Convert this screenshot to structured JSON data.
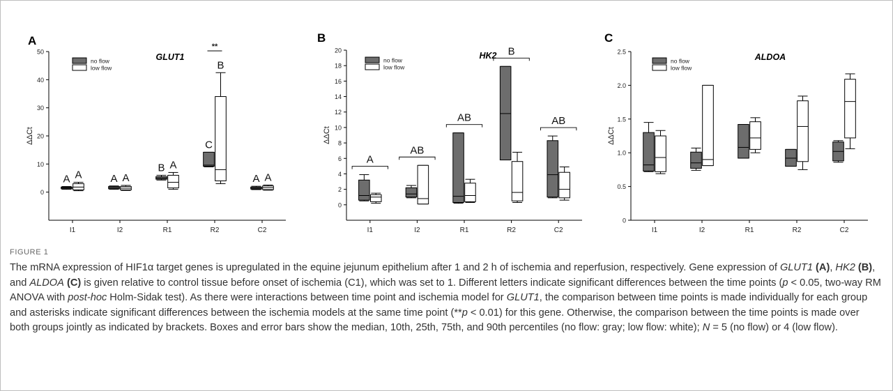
{
  "figure_label": "FIGURE 1",
  "caption_parts": [
    {
      "t": "The mRNA expression of HIF1α target genes is upregulated in the equine jejunum epithelium after 1 and 2 h of ischemia and reperfusion, respectively. Gene expression of "
    },
    {
      "t": "GLUT1",
      "s": "i"
    },
    {
      "t": " "
    },
    {
      "t": "(A)",
      "s": "b"
    },
    {
      "t": ", "
    },
    {
      "t": "HK2",
      "s": "i"
    },
    {
      "t": " "
    },
    {
      "t": "(B)",
      "s": "b"
    },
    {
      "t": ", and "
    },
    {
      "t": "ALDOA",
      "s": "i"
    },
    {
      "t": " "
    },
    {
      "t": "(C)",
      "s": "b"
    },
    {
      "t": " is given relative to control tissue before onset of ischemia (C1), which was set to 1. Different letters indicate significant differences between the time points ("
    },
    {
      "t": "p",
      "s": "i"
    },
    {
      "t": " < 0.05, two-way RM ANOVA with "
    },
    {
      "t": "post-hoc",
      "s": "i"
    },
    {
      "t": " Holm-Sidak test). As there were interactions between time point and ischemia model for "
    },
    {
      "t": "GLUT1",
      "s": "i"
    },
    {
      "t": ", the comparison between time points is made individually for each group and asterisks indicate significant differences between the ischemia models at the same time point (**"
    },
    {
      "t": "p",
      "s": "i"
    },
    {
      "t": " < 0.01) for this gene. Otherwise, the comparison between the time points is made over both groups jointly as indicated by brackets. Boxes and error bars show the median, 10th, 25th, 75th, and 90th percentiles (no flow: gray; low flow: white); "
    },
    {
      "t": "N",
      "s": "i"
    },
    {
      "t": " = 5 (no flow) or 4 (low flow)."
    }
  ],
  "colors": {
    "no_flow": "#6d6d6d",
    "low_flow": "#ffffff",
    "stroke": "#000000"
  },
  "chart_data": [
    {
      "type": "box",
      "panel": "A",
      "title": "GLUT1",
      "ylabel": "ΔΔCt",
      "ylim": [
        -10,
        50
      ],
      "yticks": [
        0,
        10,
        20,
        30,
        40,
        50
      ],
      "categories": [
        "I1",
        "I2",
        "R1",
        "R2",
        "C2"
      ],
      "legend": [
        "no flow",
        "low flow"
      ],
      "legend_position": "top-left",
      "series": [
        {
          "name": "no flow",
          "boxes": [
            {
              "p10": 1.0,
              "q1": 1.2,
              "median": 1.5,
              "q3": 1.8,
              "p90": 2.0
            },
            {
              "p10": 1.0,
              "q1": 1.2,
              "median": 1.6,
              "q3": 2.0,
              "p90": 2.2
            },
            {
              "p10": 4.3,
              "q1": 4.6,
              "median": 5.0,
              "q3": 5.5,
              "p90": 6.0
            },
            {
              "p10": 9.0,
              "q1": 9.2,
              "median": 9.6,
              "q3": 14.2,
              "p90": 14.2
            },
            {
              "p10": 0.9,
              "q1": 1.1,
              "median": 1.4,
              "q3": 1.8,
              "p90": 2.1
            }
          ]
        },
        {
          "name": "low flow",
          "boxes": [
            {
              "p10": 0.5,
              "q1": 0.8,
              "median": 1.8,
              "q3": 3.0,
              "p90": 3.5
            },
            {
              "p10": 0.6,
              "q1": 0.8,
              "median": 1.4,
              "q3": 2.0,
              "p90": 2.4
            },
            {
              "p10": 1.0,
              "q1": 1.5,
              "median": 3.5,
              "q3": 6.0,
              "p90": 7.0
            },
            {
              "p10": 3.0,
              "q1": 4.0,
              "median": 8.0,
              "q3": 34.0,
              "p90": 42.5
            },
            {
              "p10": 0.7,
              "q1": 0.9,
              "median": 1.6,
              "q3": 2.2,
              "p90": 2.5
            }
          ]
        }
      ],
      "group_letters": [
        [
          "A",
          "A"
        ],
        [
          "A",
          "A"
        ],
        [
          "B",
          "A"
        ],
        [
          "C",
          "B"
        ],
        [
          "A",
          "A"
        ]
      ],
      "significance": {
        "category": "R2",
        "label": "**"
      }
    },
    {
      "type": "box",
      "panel": "B",
      "title": "HK2",
      "ylabel": "ΔΔCt",
      "ylim": [
        -2,
        20
      ],
      "yticks": [
        0,
        2,
        4,
        6,
        8,
        10,
        12,
        14,
        16,
        18,
        20
      ],
      "categories": [
        "I1",
        "I2",
        "R1",
        "R2",
        "C2"
      ],
      "legend": [
        "no flow",
        "low flow"
      ],
      "legend_position": "top-left",
      "series": [
        {
          "name": "no flow",
          "boxes": [
            {
              "p10": 0.5,
              "q1": 0.6,
              "median": 1.2,
              "q3": 3.2,
              "p90": 3.9
            },
            {
              "p10": 0.9,
              "q1": 1.0,
              "median": 1.4,
              "q3": 2.2,
              "p90": 2.5
            },
            {
              "p10": 0.2,
              "q1": 0.3,
              "median": 1.1,
              "q3": 9.3,
              "p90": 9.3
            },
            {
              "p10": 5.8,
              "q1": 5.8,
              "median": 11.8,
              "q3": 17.9,
              "p90": 17.9
            },
            {
              "p10": 0.9,
              "q1": 1.0,
              "median": 3.9,
              "q3": 8.3,
              "p90": 8.9
            }
          ]
        },
        {
          "name": "low flow",
          "boxes": [
            {
              "p10": 0.2,
              "q1": 0.4,
              "median": 1.0,
              "q3": 1.3,
              "p90": 1.5
            },
            {
              "p10": 0.1,
              "q1": 0.1,
              "median": 0.8,
              "q3": 5.1,
              "p90": 5.1
            },
            {
              "p10": 0.3,
              "q1": 0.4,
              "median": 1.2,
              "q3": 2.8,
              "p90": 3.3
            },
            {
              "p10": 0.3,
              "q1": 0.5,
              "median": 1.6,
              "q3": 5.6,
              "p90": 6.8
            },
            {
              "p10": 0.6,
              "q1": 0.9,
              "median": 2.0,
              "q3": 4.2,
              "p90": 4.9
            }
          ]
        }
      ],
      "bracket_letters": [
        "A",
        "AB",
        "AB",
        "B",
        "AB"
      ]
    },
    {
      "type": "box",
      "panel": "C",
      "title": "ALDOA",
      "ylabel": "ΔΔCt",
      "ylim": [
        0,
        2.5
      ],
      "yticks": [
        0,
        0.5,
        1.0,
        1.5,
        2.0,
        2.5
      ],
      "ytick_labels": [
        "0",
        "0.5",
        "1.0",
        "1.5",
        "2.0",
        "2.5"
      ],
      "categories": [
        "I1",
        "I2",
        "R1",
        "R2",
        "C2"
      ],
      "legend": [
        "no flow",
        "low flow"
      ],
      "legend_position": "top-left",
      "series": [
        {
          "name": "no flow",
          "boxes": [
            {
              "p10": 0.72,
              "q1": 0.73,
              "median": 0.82,
              "q3": 1.3,
              "p90": 1.45
            },
            {
              "p10": 0.74,
              "q1": 0.77,
              "median": 0.85,
              "q3": 1.01,
              "p90": 1.07
            },
            {
              "p10": 0.92,
              "q1": 0.92,
              "median": 1.08,
              "q3": 1.42,
              "p90": 1.42
            },
            {
              "p10": 0.8,
              "q1": 0.8,
              "median": 0.92,
              "q3": 1.05,
              "p90": 1.05
            },
            {
              "p10": 0.86,
              "q1": 0.88,
              "median": 1.02,
              "q3": 1.16,
              "p90": 1.18
            }
          ]
        },
        {
          "name": "low flow",
          "boxes": [
            {
              "p10": 0.69,
              "q1": 0.72,
              "median": 0.93,
              "q3": 1.25,
              "p90": 1.33
            },
            {
              "p10": 0.81,
              "q1": 0.81,
              "median": 0.9,
              "q3": 2.0,
              "p90": 2.0
            },
            {
              "p10": 1.0,
              "q1": 1.05,
              "median": 1.22,
              "q3": 1.46,
              "p90": 1.52
            },
            {
              "p10": 0.75,
              "q1": 0.87,
              "median": 1.39,
              "q3": 1.77,
              "p90": 1.84
            },
            {
              "p10": 1.06,
              "q1": 1.22,
              "median": 1.76,
              "q3": 2.09,
              "p90": 2.17
            }
          ]
        }
      ]
    }
  ]
}
